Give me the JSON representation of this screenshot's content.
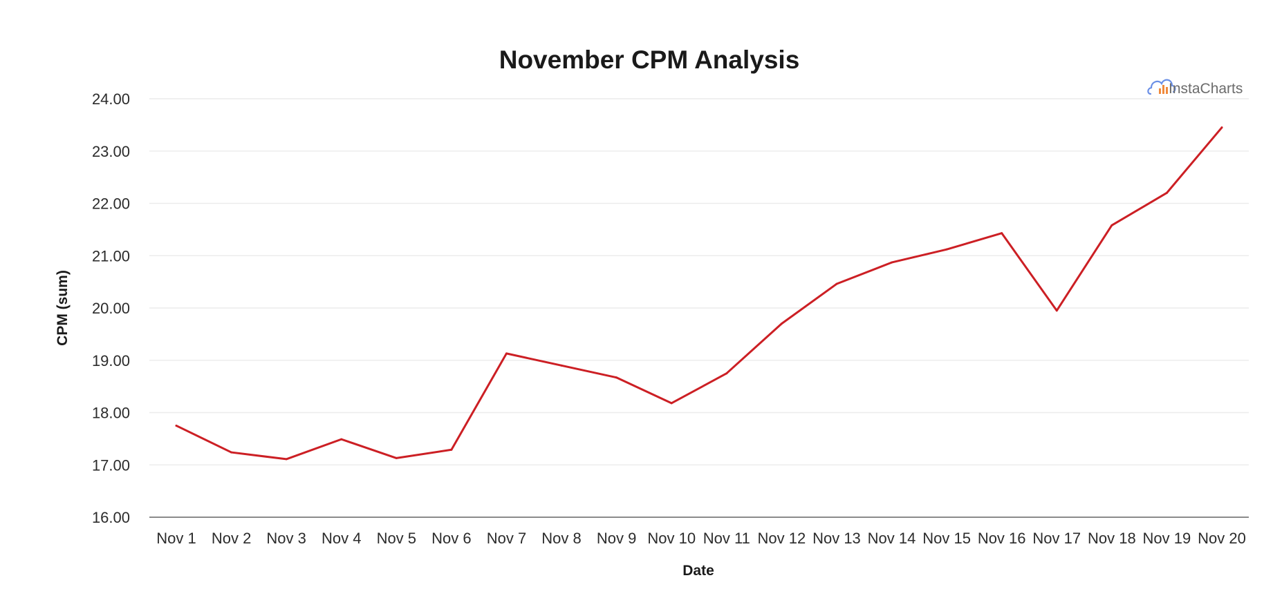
{
  "chart_data": {
    "type": "line",
    "title": "November CPM Analysis",
    "xlabel": "Date",
    "ylabel": "CPM (sum)",
    "categories": [
      "Nov 1",
      "Nov 2",
      "Nov 3",
      "Nov 4",
      "Nov 5",
      "Nov 6",
      "Nov 7",
      "Nov 8",
      "Nov 9",
      "Nov 10",
      "Nov 11",
      "Nov 12",
      "Nov 13",
      "Nov 14",
      "Nov 15",
      "Nov 16",
      "Nov 17",
      "Nov 18",
      "Nov 19",
      "Nov 20"
    ],
    "series": [
      {
        "color": "#cc1f24",
        "values": [
          17.75,
          17.24,
          17.11,
          17.49,
          17.13,
          17.29,
          19.13,
          18.9,
          18.67,
          18.18,
          18.75,
          19.7,
          20.46,
          20.87,
          21.12,
          21.43,
          19.95,
          21.58,
          22.2,
          23.45
        ]
      }
    ],
    "ylim": [
      16,
      24
    ],
    "yticks": [
      "16.00",
      "17.00",
      "18.00",
      "19.00",
      "20.00",
      "21.00",
      "22.00",
      "23.00",
      "24.00"
    ],
    "grid": true,
    "legend": "none"
  },
  "watermark": {
    "text": "InstaCharts",
    "icon": "cloud-chart-icon",
    "colors": {
      "cloud": "#6a8fe6",
      "bars": "#f08a3c"
    }
  }
}
